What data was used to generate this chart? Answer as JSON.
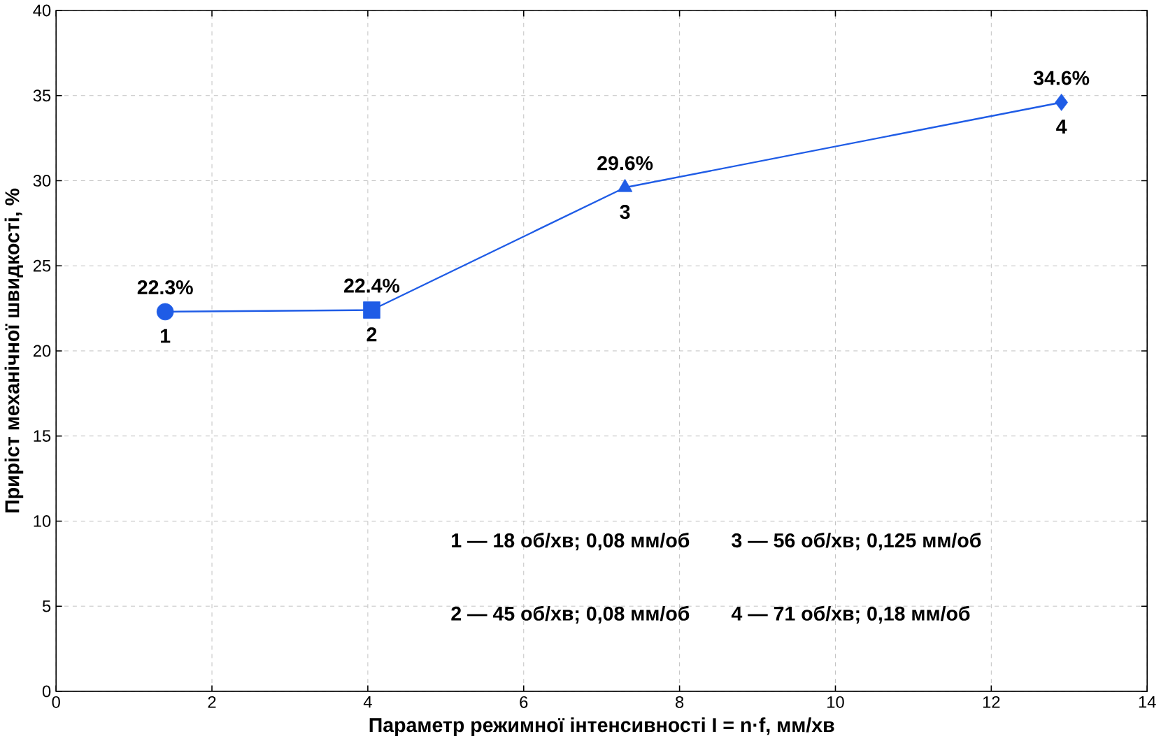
{
  "chart_data": {
    "type": "line",
    "xlabel": "Параметр режимної інтенсивності I = n·f, мм/хв",
    "ylabel": "Приріст механічної швидкості, %",
    "x": [
      1.4,
      4.05,
      7.3,
      12.9
    ],
    "series": [
      {
        "color": "#1f5ce6",
        "values": [
          22.3,
          22.4,
          29.6,
          34.6
        ],
        "value_labels": [
          "22.3%",
          "22.4%",
          "29.6%",
          "34.6%"
        ],
        "marker": [
          "circle",
          "square",
          "triangle",
          "diamond"
        ]
      }
    ],
    "xlim": [
      0,
      14
    ],
    "ylim": [
      0,
      40
    ],
    "xticks": [
      0,
      2,
      4,
      6,
      8,
      10,
      12,
      14
    ],
    "yticks": [
      0,
      5,
      10,
      15,
      20,
      25,
      30,
      35,
      40
    ],
    "grid": true,
    "line_style": "solid",
    "annotations": [
      {
        "text": "1",
        "x": 1.4,
        "y": 22.3
      },
      {
        "text": "2",
        "x": 4.05,
        "y": 22.4
      },
      {
        "text": "3",
        "x": 7.3,
        "y": 29.6
      },
      {
        "text": "4",
        "x": 12.9,
        "y": 34.6
      },
      "1 — 18 об/хв; 0,08 мм/об",
      "3 — 56 об/хв; 0,125 мм/об",
      "2 — 45 об/хв; 0,08 мм/об",
      "4 — 71 об/хв; 0,18 мм/об"
    ]
  }
}
